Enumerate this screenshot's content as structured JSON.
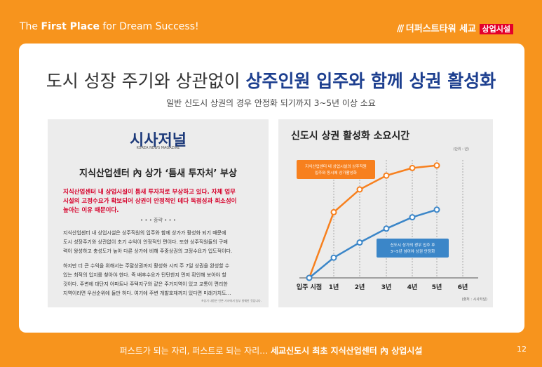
{
  "header": {
    "slogan_pre": "The ",
    "slogan_bold": "First Place",
    "slogan_post": " for Dream Success!",
    "brand": "더퍼스트타워 세교",
    "badge": "상업시설"
  },
  "title": {
    "plain": "도시 성장 주기와 상관없이 ",
    "bold": "상주인원 입주와 함께 상권 활성화",
    "subtitle": "일반 신도시 상권의 경우 안정화 되기까지 3~5년 이상 소요"
  },
  "article": {
    "logo": "시사저널",
    "logo_sub": "KOREA NEWS MAGAZINE",
    "headline": "지식산업센터 內 상가 ‘틈새 투자처’ 부상",
    "lead": [
      "지식산업센터 내 상업시설이 틈새 투자처로 부상하고 있다. 자체 업무",
      "시설의 고정수요가 확보되어 상권이 안정적인 데다 독점성과 희소성이",
      "높아는 이유 때문이다."
    ],
    "ellipsis": "• • • 중략 • • •",
    "body1": [
      "지식산업센터 내 상업시설은 상주직원의 입주와 함께 상가가 활성화 되기 때문에",
      "도시 성장주기와 상관없이 초기 수익이 안정적인 편이다. 또한 상주직원들의 구매",
      "력이 왕성하고 충성도가 높아 다른 상가에 비해 주중상권의 고정수요가 입도적이다."
    ],
    "body2": [
      "하지만 더 큰 수익을 위해서는 주말상권까지 활성화 시켜 주 7일 상권을 완성할 수",
      "있는 최적의 입지를 찾아야 한다. 즉 배후수요가 탄탄한지 먼저 확인해 보아야 할",
      "것이다. 주변에 대단지 아파트나 주택지구와 같은 주거지역이 있고 교통이 편리한",
      "지역이라면 우선순위에 들만 하다. 여기에 주변 개발호재까지 있다면 미래가치도…"
    ],
    "note": "※상기 내용은 언론 기사에서 일부 발췌한 것입니다."
  },
  "chart_data": {
    "type": "line",
    "title": "신도시 상권 활성화 소요시간",
    "unit": "(단위 : 년)",
    "source": "(출처 : 시사저널)",
    "categories": [
      "입주 시점",
      "1년",
      "2년",
      "3년",
      "4년",
      "5년",
      "6년"
    ],
    "series": [
      {
        "name": "지식산업센터 내 상업시설의 상주직원 입주와 동시에 상가활성화",
        "color": "#f7801e",
        "values": [
          0,
          52,
          70,
          81,
          87,
          89,
          null
        ]
      },
      {
        "name": "신도시 상가의 경우 입주 후 3~5년 넘어야 상권 안정화",
        "color": "#3b86c8",
        "values": [
          0,
          16,
          28,
          39,
          48,
          54,
          null
        ]
      }
    ],
    "ylim": [
      0,
      100
    ]
  },
  "footer": {
    "plain": "퍼스트가 되는 자리, 퍼스트로 되는 자리… ",
    "bold": "세교신도시 최초 지식산업센터 內 상업시설",
    "page": "12"
  }
}
